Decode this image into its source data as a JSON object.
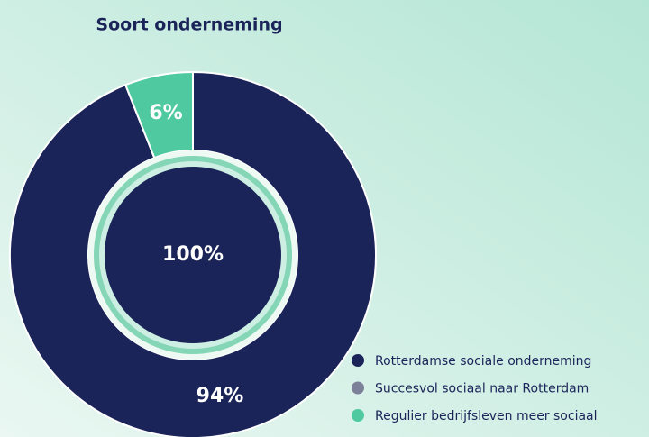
{
  "chart_data": {
    "type": "donut",
    "title": "Soort onderneming",
    "center_label": "100%",
    "series": [
      {
        "name": "Rotterdamse sociale onderneming",
        "color": "#1b2459",
        "value": 94,
        "value_label": "94%"
      },
      {
        "name": "Succesvol sociaal naar Rotterdam",
        "color": "#7c8199",
        "value": 0,
        "value_label": null
      },
      {
        "name": "Regulier bedrijfsleven meer sociaal",
        "color": "#4fc9a0",
        "value": 6,
        "value_label": "6%"
      }
    ],
    "legend": "bottom-right"
  }
}
